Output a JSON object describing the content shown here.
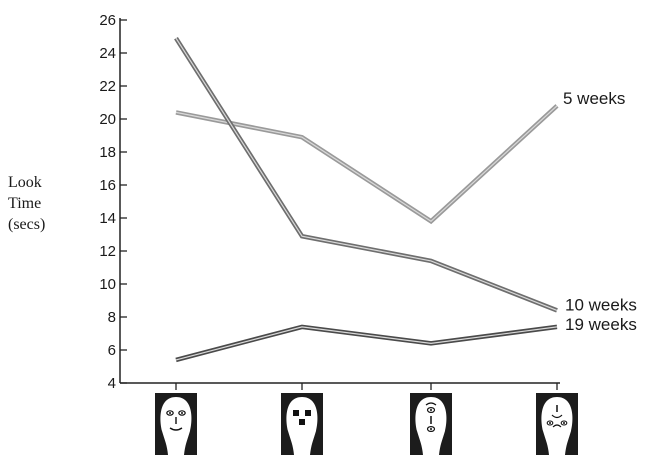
{
  "chart_data": {
    "type": "line",
    "ylabel_lines": [
      "Look",
      "Time",
      "(secs)"
    ],
    "xlabel": "",
    "ylim": [
      4,
      26
    ],
    "yticks": [
      4,
      6,
      8,
      10,
      12,
      14,
      16,
      18,
      20,
      22,
      24,
      26
    ],
    "categories": [
      "face",
      "scrambled features",
      "rearranged features",
      "inverted features"
    ],
    "grid": false,
    "legend": "inline labels at line ends (right)",
    "series": [
      {
        "name": "5 weeks",
        "values": [
          20.4,
          18.9,
          13.8,
          20.8
        ],
        "color": "#9a9a9a"
      },
      {
        "name": "10 weeks",
        "values": [
          24.9,
          12.9,
          11.4,
          8.4
        ],
        "color": "#6e6e6e"
      },
      {
        "name": "19 weeks",
        "values": [
          5.4,
          7.4,
          6.4,
          7.4
        ],
        "color": "#4a4a4a"
      }
    ]
  }
}
